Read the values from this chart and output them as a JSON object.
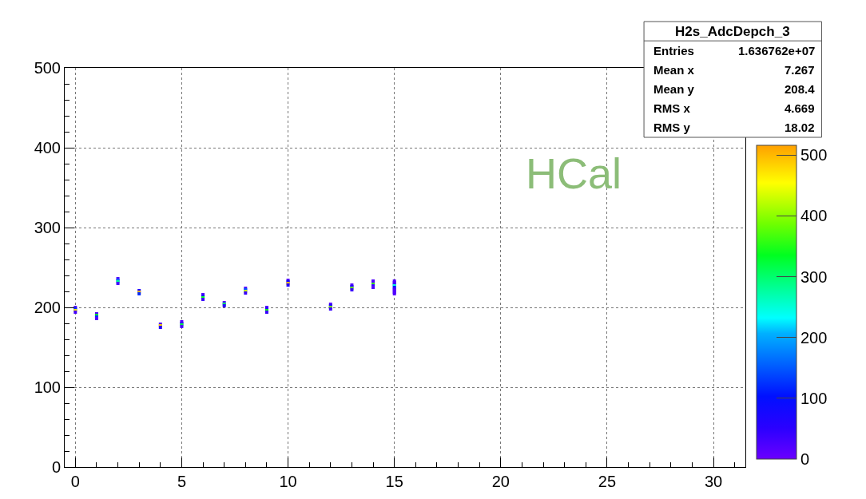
{
  "chart_data": {
    "type": "scatter",
    "marker": "square",
    "grid": true,
    "legend": false,
    "annotations": [
      "HCal",
      "H2s_AdcDepch_3",
      "Entries 1.636762e+07",
      "Mean x 7.267",
      "Mean y 208.4",
      "RMS x 4.669",
      "RMS y 18.02"
    ],
    "xlim": [
      -0.5,
      31.5
    ],
    "xticks": [
      0,
      5,
      10,
      15,
      20,
      25,
      30
    ],
    "ylim": [
      0,
      500
    ],
    "yticks": [
      0,
      100,
      200,
      300,
      400,
      500
    ],
    "clim": [
      0,
      516
    ],
    "cticks": [
      0,
      100,
      200,
      300,
      400,
      500
    ],
    "x": [
      0,
      0,
      0,
      0,
      1,
      1,
      1,
      1,
      2,
      2,
      2,
      2,
      3,
      3,
      3,
      4,
      4,
      4,
      5,
      5,
      5,
      5,
      6,
      6,
      6,
      6,
      7,
      7,
      7,
      8,
      8,
      8,
      8,
      9,
      9,
      9,
      9,
      10,
      10,
      10,
      10,
      12,
      12,
      12,
      12,
      13,
      13,
      13,
      13,
      14,
      14,
      14,
      14,
      14,
      15,
      15,
      15,
      15,
      15,
      15,
      15,
      15,
      15
    ],
    "values": [
      200,
      198,
      196,
      194,
      192,
      190,
      188,
      186,
      236,
      234,
      232,
      230,
      221,
      219,
      217,
      179,
      177,
      175,
      182,
      180,
      178,
      176,
      216,
      214,
      212,
      210,
      206,
      204,
      202,
      224,
      222,
      220,
      218,
      200,
      198,
      196,
      194,
      234,
      232,
      230,
      228,
      204,
      202,
      200,
      198,
      228,
      226,
      224,
      222,
      233,
      231,
      229,
      227,
      225,
      233,
      231,
      229,
      227,
      225,
      223,
      221,
      219,
      217
    ],
    "cvalues": [
      20,
      120,
      470,
      30,
      20,
      330,
      120,
      20,
      20,
      160,
      280,
      30,
      60,
      500,
      120,
      20,
      480,
      60,
      20,
      40,
      320,
      20,
      20,
      80,
      330,
      40,
      20,
      300,
      50,
      20,
      150,
      430,
      40,
      20,
      60,
      340,
      40,
      20,
      80,
      500,
      60,
      20,
      60,
      390,
      40,
      20,
      60,
      380,
      40,
      20,
      20,
      360,
      40,
      20,
      20,
      20,
      40,
      250,
      100,
      30,
      20,
      20,
      20
    ]
  }
}
